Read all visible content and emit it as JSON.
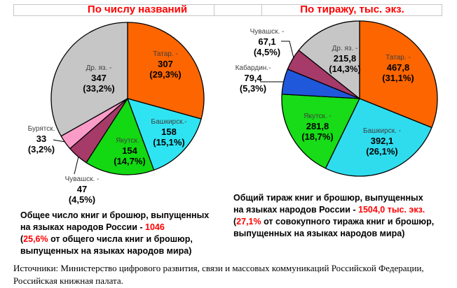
{
  "header": {
    "left_title": "По числу названий",
    "right_title": "По тиражу, тыс. экз."
  },
  "colors": {
    "title_red": "#ff0000",
    "highlight_red": "#ff0000",
    "slice_outline": "#000000"
  },
  "chart_data": [
    {
      "type": "pie",
      "title": "По числу названий",
      "start_angle": "top",
      "direction": "clockwise",
      "total": 1046,
      "segments": [
        {
          "name": "Татар. -",
          "display_value": "307",
          "display_percent": "(29,3%)",
          "value": 307,
          "percent": 29.3,
          "color": "#fc6500",
          "placement": "inside"
        },
        {
          "name": "Башкирск.-",
          "display_value": "158",
          "display_percent": "(15,1%)",
          "value": 158,
          "percent": 15.1,
          "color": "#2fe4f2",
          "placement": "inside"
        },
        {
          "name": "Якутск. -",
          "display_value": "154",
          "display_percent": "(14,7%)",
          "value": 154,
          "percent": 14.7,
          "color": "#12d912",
          "placement": "inside"
        },
        {
          "name": "Чувашск. -",
          "display_value": "47",
          "display_percent": "(4,5%)",
          "value": 47,
          "percent": 4.5,
          "color": "#a63a68",
          "placement": "outside"
        },
        {
          "name": "Бурятск.",
          "display_value": "33",
          "display_percent": "(3,2%)",
          "value": 33,
          "percent": 3.2,
          "color": "#fb9cc8",
          "placement": "outside"
        },
        {
          "name": "Др. яз. -",
          "display_value": "347",
          "display_percent": "(33,2%)",
          "value": 347,
          "percent": 33.2,
          "color": "#c6c6c6",
          "placement": "inside"
        }
      ]
    },
    {
      "type": "pie",
      "title": "По тиражу, тыс. экз.",
      "start_angle": "top",
      "direction": "clockwise",
      "total": 1504.0,
      "segments": [
        {
          "name": "Татар. -",
          "display_value": "467,8",
          "display_percent": "(31,1%)",
          "value": 467.8,
          "percent": 31.1,
          "color": "#fc6500",
          "placement": "inside"
        },
        {
          "name": "Башкирск. -",
          "display_value": "392,1",
          "display_percent": "(26,1%)",
          "value": 392.1,
          "percent": 26.1,
          "color": "#2fdcee",
          "placement": "inside"
        },
        {
          "name": "Якутск. -",
          "display_value": "281,8",
          "display_percent": "(18,7%)",
          "value": 281.8,
          "percent": 18.7,
          "color": "#17dc17",
          "placement": "inside"
        },
        {
          "name": "Кабардин.-",
          "display_value": "79,4",
          "display_percent": "(5,3%)",
          "value": 79.4,
          "percent": 5.3,
          "color": "#2058dc",
          "placement": "outside"
        },
        {
          "name": "Чувашск. -",
          "display_value": "67,1",
          "display_percent": "(4,5%)",
          "value": 67.1,
          "percent": 4.5,
          "color": "#a63a68",
          "placement": "outside"
        },
        {
          "name": "Др. яз. -",
          "display_value": "215,8",
          "display_percent": "(14,3%)",
          "value": 215.8,
          "percent": 14.3,
          "color": "#c6c6c6",
          "placement": "inside"
        }
      ]
    }
  ],
  "caption_left": {
    "lines": [
      {
        "parts": [
          {
            "text": "Общее число книг и брошюр, выпущенных",
            "red": false
          }
        ]
      },
      {
        "parts": [
          {
            "text": "на языках народов России - ",
            "red": false
          },
          {
            "text": "1046",
            "red": true
          }
        ]
      },
      {
        "parts": [
          {
            "text": "(",
            "red": false
          },
          {
            "text": "25,6%",
            "red": true
          },
          {
            "text": " от общего числа книг и брошюр,",
            "red": false
          }
        ]
      },
      {
        "parts": [
          {
            "text": "выпущенных на языках народов мира)",
            "red": false
          }
        ]
      }
    ]
  },
  "caption_right": {
    "lines": [
      {
        "parts": [
          {
            "text": "Общий тираж книг и брошюр, выпущенных",
            "red": false
          }
        ]
      },
      {
        "parts": [
          {
            "text": "на языках народов России - ",
            "red": false
          },
          {
            "text": "1504,0 тыс. экз.",
            "red": true
          }
        ]
      },
      {
        "parts": [
          {
            "text": "(",
            "red": false
          },
          {
            "text": "27,1%",
            "red": true
          },
          {
            "text": " от совокупного тиража книг и брошюр,",
            "red": false
          }
        ]
      },
      {
        "parts": [
          {
            "text": "выпущенных на языках народов мира)",
            "red": false
          }
        ]
      }
    ]
  },
  "footer": {
    "line1": "Источники: Министерство цифрового развития, связи и массовых коммуникаций Российской Федерации,",
    "line2": "Российская книжная палата."
  }
}
